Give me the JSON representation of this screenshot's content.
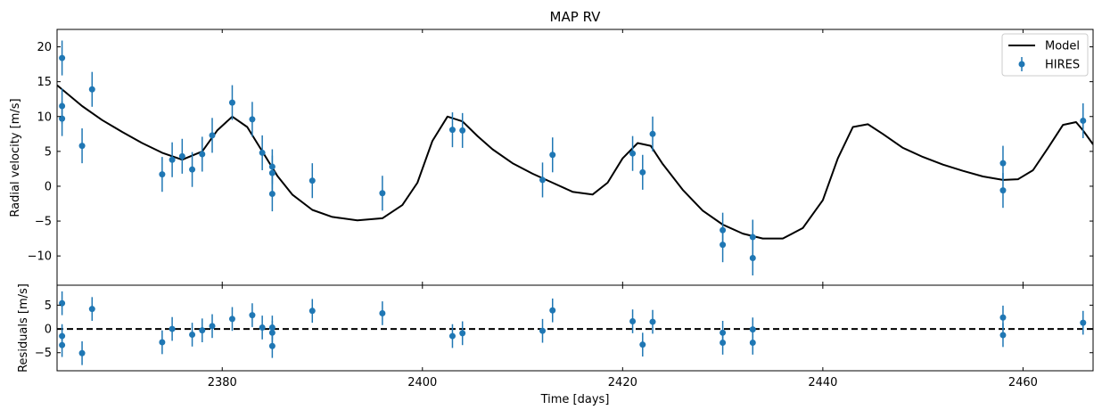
{
  "chart_data": [
    {
      "type": "scatter",
      "panel": "main",
      "title": "MAP RV",
      "xlabel": "",
      "ylabel": "Radial velocity [m/s]",
      "xlim": [
        2363.5,
        2467
      ],
      "ylim": [
        -14.2,
        22.5
      ],
      "yticks": [
        -10,
        -5,
        0,
        5,
        10,
        15,
        20
      ],
      "yticklabels": [
        "−10",
        "−5",
        "0",
        "5",
        "10",
        "15",
        "20"
      ],
      "legend": {
        "position": "top-right",
        "entries": [
          "Model",
          "HIRES"
        ]
      },
      "colors": {
        "model": "#000000",
        "data": "#1f77b4"
      },
      "grid": false,
      "series": [
        {
          "name": "Model",
          "style": "line",
          "x": [
            2363.5,
            2366,
            2368,
            2370,
            2372,
            2374,
            2376,
            2378,
            2379.5,
            2381,
            2382.5,
            2384,
            2385.5,
            2387,
            2389,
            2391,
            2393.5,
            2396,
            2398,
            2399.5,
            2401,
            2402.5,
            2404,
            2405.5,
            2407,
            2409,
            2411,
            2413,
            2415,
            2417,
            2418.5,
            2420,
            2421.5,
            2422.8,
            2424,
            2426,
            2428,
            2430,
            2432,
            2434,
            2436,
            2438,
            2440,
            2441.5,
            2443,
            2444.5,
            2446,
            2448,
            2450,
            2452,
            2454,
            2456,
            2458,
            2459.5,
            2461,
            2462.5,
            2464,
            2465.3,
            2466,
            2467
          ],
          "y": [
            14.5,
            11.5,
            9.5,
            7.8,
            6.2,
            4.8,
            3.8,
            5.0,
            8.0,
            10.0,
            8.5,
            5.0,
            1.5,
            -1.2,
            -3.4,
            -4.4,
            -4.9,
            -4.6,
            -2.7,
            0.5,
            6.5,
            10.0,
            9.3,
            7.2,
            5.3,
            3.3,
            1.8,
            0.5,
            -0.8,
            -1.2,
            0.5,
            4.0,
            6.2,
            5.8,
            3.2,
            -0.5,
            -3.5,
            -5.5,
            -6.8,
            -7.5,
            -7.5,
            -6.0,
            -2.0,
            4.0,
            8.5,
            8.9,
            7.5,
            5.5,
            4.2,
            3.1,
            2.2,
            1.4,
            0.9,
            1.0,
            2.3,
            5.5,
            8.8,
            9.2,
            8.0,
            6.0
          ]
        },
        {
          "name": "HIRES",
          "style": "errorbar",
          "x": [
            2364,
            2364,
            2364,
            2367,
            2366,
            2374,
            2375,
            2376,
            2377,
            2378,
            2379,
            2381,
            2383,
            2384,
            2385,
            2385,
            2385,
            2389,
            2396,
            2403,
            2404,
            2412,
            2413,
            2421,
            2422,
            2423,
            2430,
            2430,
            2433,
            2433,
            2458,
            2458,
            2466
          ],
          "y": [
            18.4,
            11.5,
            9.7,
            13.9,
            5.8,
            1.7,
            3.8,
            4.3,
            2.4,
            4.6,
            7.3,
            12.0,
            9.6,
            4.8,
            2.8,
            1.9,
            -1.1,
            0.8,
            -1.0,
            8.1,
            8.0,
            0.9,
            4.5,
            4.7,
            2.0,
            7.5,
            -6.3,
            -8.4,
            -7.3,
            -10.3,
            3.3,
            -0.6,
            9.4
          ],
          "yerr": [
            2.5,
            2.5,
            2.5,
            2.5,
            2.5,
            2.5,
            2.5,
            2.5,
            2.5,
            2.5,
            2.5,
            2.5,
            2.5,
            2.5,
            2.5,
            2.5,
            2.5,
            2.5,
            2.5,
            2.5,
            2.5,
            2.5,
            2.5,
            2.5,
            2.5,
            2.5,
            2.5,
            2.5,
            2.5,
            2.5,
            2.5,
            2.5,
            2.5
          ]
        }
      ]
    },
    {
      "type": "scatter",
      "panel": "residuals",
      "title": "",
      "xlabel": "Time [days]",
      "ylabel": "Residuals [m/s]",
      "xlim": [
        2363.5,
        2467
      ],
      "ylim": [
        -8.8,
        9.2
      ],
      "xticks": [
        2380,
        2400,
        2420,
        2440,
        2460
      ],
      "xticklabels": [
        "2380",
        "2400",
        "2420",
        "2440",
        "2460"
      ],
      "yticks": [
        -5,
        0,
        5
      ],
      "yticklabels": [
        "−5",
        "0",
        "5"
      ],
      "reference_line": {
        "y": 0,
        "style": "dashed"
      },
      "colors": {
        "data": "#1f77b4"
      },
      "grid": false,
      "series": [
        {
          "name": "HIRES",
          "style": "errorbar",
          "x": [
            2364,
            2364,
            2364,
            2367,
            2366,
            2374,
            2375,
            2377,
            2378,
            2379,
            2381,
            2383,
            2384,
            2385,
            2385,
            2385,
            2389,
            2396,
            2403,
            2404,
            2412,
            2413,
            2421,
            2422,
            2423,
            2430,
            2430,
            2433,
            2433,
            2458,
            2458,
            2466
          ],
          "y": [
            5.4,
            -1.5,
            -3.4,
            4.2,
            -5.1,
            -2.8,
            0.0,
            -1.2,
            -0.3,
            0.6,
            2.1,
            2.9,
            0.3,
            0.3,
            -0.8,
            -3.6,
            3.8,
            3.3,
            -1.5,
            -0.9,
            -0.4,
            3.9,
            1.6,
            -3.3,
            1.5,
            -0.8,
            -2.9,
            -0.1,
            -2.9,
            2.4,
            -1.3,
            1.3
          ],
          "yerr": [
            2.5,
            2.5,
            2.5,
            2.5,
            2.5,
            2.5,
            2.5,
            2.5,
            2.5,
            2.5,
            2.5,
            2.5,
            2.5,
            2.5,
            2.5,
            2.5,
            2.5,
            2.5,
            2.5,
            2.5,
            2.5,
            2.5,
            2.5,
            2.5,
            2.5,
            2.5,
            2.5,
            2.5,
            2.5,
            2.5,
            2.5,
            2.5
          ]
        }
      ]
    }
  ]
}
